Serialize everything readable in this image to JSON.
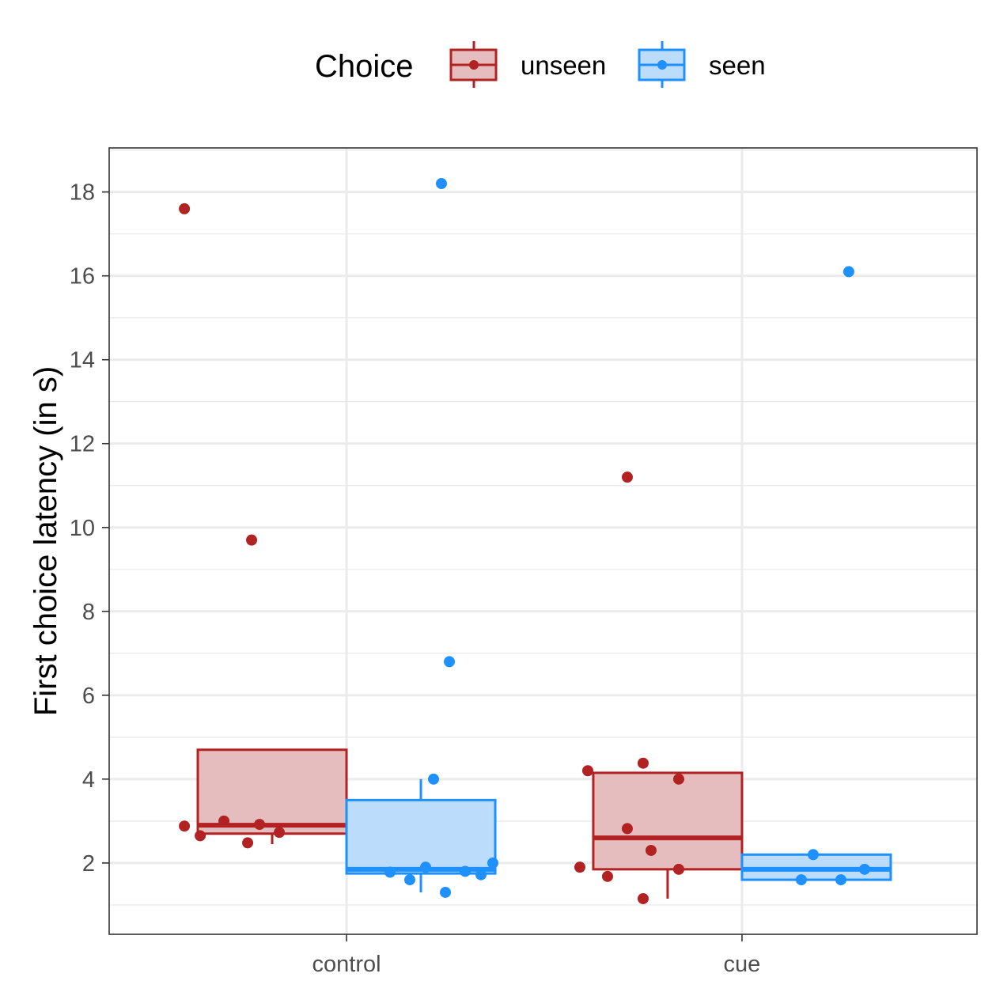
{
  "chart_data": {
    "type": "boxplot",
    "categories": [
      "control",
      "cue"
    ],
    "ylabel": "First choice latency (in s)",
    "xlabel": "",
    "ylim": [
      0.3,
      19.05
    ],
    "yticks": [
      2,
      4,
      6,
      8,
      10,
      12,
      14,
      16,
      18
    ],
    "grid": true,
    "legend": {
      "title": "Choice",
      "position": "top",
      "entries": [
        "unseen",
        "seen"
      ]
    },
    "series": [
      {
        "name": "unseen",
        "color": "#B22222",
        "fill": "#E5BDBE",
        "boxes": [
          {
            "category": "control",
            "q1": 2.7,
            "median": 2.9,
            "q3": 4.7,
            "whisker_low": 2.45,
            "whisker_high": 4.7,
            "points": [
              {
                "dx": -0.41,
                "y": 17.6
              },
              {
                "dx": -0.24,
                "y": 9.7
              },
              {
                "dx": -0.41,
                "y": 2.88
              },
              {
                "dx": -0.37,
                "y": 2.65
              },
              {
                "dx": -0.31,
                "y": 3.0
              },
              {
                "dx": -0.25,
                "y": 2.48
              },
              {
                "dx": -0.22,
                "y": 2.92
              },
              {
                "dx": -0.17,
                "y": 2.73
              }
            ]
          },
          {
            "category": "cue",
            "q1": 1.85,
            "median": 2.6,
            "q3": 4.15,
            "whisker_low": 1.15,
            "whisker_high": 4.15,
            "points": [
              {
                "dx": -0.29,
                "y": 11.2
              },
              {
                "dx": -0.39,
                "y": 4.2
              },
              {
                "dx": -0.25,
                "y": 4.38
              },
              {
                "dx": -0.16,
                "y": 4.0
              },
              {
                "dx": -0.29,
                "y": 2.82
              },
              {
                "dx": -0.23,
                "y": 2.3
              },
              {
                "dx": -0.41,
                "y": 1.9
              },
              {
                "dx": -0.34,
                "y": 1.68
              },
              {
                "dx": -0.16,
                "y": 1.85
              },
              {
                "dx": -0.25,
                "y": 1.15
              }
            ]
          }
        ]
      },
      {
        "name": "seen",
        "color": "#1E90FF",
        "fill": "#BBDDFB",
        "boxes": [
          {
            "category": "control",
            "q1": 1.75,
            "median": 1.85,
            "q3": 3.5,
            "whisker_low": 1.3,
            "whisker_high": 4.0,
            "points": [
              {
                "dx": 0.24,
                "y": 18.2
              },
              {
                "dx": 0.26,
                "y": 6.8
              },
              {
                "dx": 0.22,
                "y": 4.0
              },
              {
                "dx": 0.11,
                "y": 1.78
              },
              {
                "dx": 0.16,
                "y": 1.6
              },
              {
                "dx": 0.2,
                "y": 1.9
              },
              {
                "dx": 0.25,
                "y": 1.3
              },
              {
                "dx": 0.3,
                "y": 1.8
              },
              {
                "dx": 0.34,
                "y": 1.72
              },
              {
                "dx": 0.37,
                "y": 2.0
              }
            ]
          },
          {
            "category": "cue",
            "q1": 1.6,
            "median": 1.85,
            "q3": 2.2,
            "whisker_low": 1.6,
            "whisker_high": 2.2,
            "points": [
              {
                "dx": 0.27,
                "y": 16.1
              },
              {
                "dx": 0.18,
                "y": 2.2
              },
              {
                "dx": 0.15,
                "y": 1.6
              },
              {
                "dx": 0.25,
                "y": 1.6
              },
              {
                "dx": 0.31,
                "y": 1.85
              }
            ]
          }
        ]
      }
    ]
  }
}
